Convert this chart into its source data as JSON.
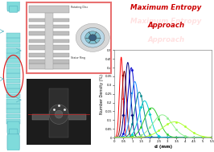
{
  "xlabel": "d (mm)",
  "ylabel": "Number Density (%)",
  "xlim": [
    0,
    5.5
  ],
  "ylim": [
    0,
    0.5
  ],
  "curves": [
    {
      "mu": 0.38,
      "sigma": 0.1,
      "color": "#FF0000",
      "scale": 0.46,
      "marker": "^"
    },
    {
      "mu": 0.55,
      "sigma": 0.13,
      "color": "#8B0000",
      "scale": 0.38,
      "marker": "s"
    },
    {
      "mu": 0.75,
      "sigma": 0.16,
      "color": "#000080",
      "scale": 0.43,
      "marker": "D"
    },
    {
      "mu": 0.95,
      "sigma": 0.19,
      "color": "#0000CD",
      "scale": 0.4,
      "marker": "o"
    },
    {
      "mu": 1.15,
      "sigma": 0.22,
      "color": "#1E90FF",
      "scale": 0.32,
      "marker": "s"
    },
    {
      "mu": 1.4,
      "sigma": 0.26,
      "color": "#00868B",
      "scale": 0.26,
      "marker": "o"
    },
    {
      "mu": 1.7,
      "sigma": 0.32,
      "color": "#00CED1",
      "scale": 0.21,
      "marker": "D"
    },
    {
      "mu": 2.1,
      "sigma": 0.42,
      "color": "#32CD32",
      "scale": 0.17,
      "marker": "o"
    },
    {
      "mu": 2.7,
      "sigma": 0.55,
      "color": "#90EE90",
      "scale": 0.13,
      "marker": "o"
    },
    {
      "mu": 3.4,
      "sigma": 0.7,
      "color": "#ADFF2F",
      "scale": 0.09,
      "marker": "o"
    }
  ],
  "bg_color": "#FFFFFF",
  "title_color": "#CC0000",
  "col_color": "#7FDBDB",
  "col_dark": "#5BB8C4",
  "mech_bg": "#AAEEF0",
  "mech_border": "#E87070"
}
